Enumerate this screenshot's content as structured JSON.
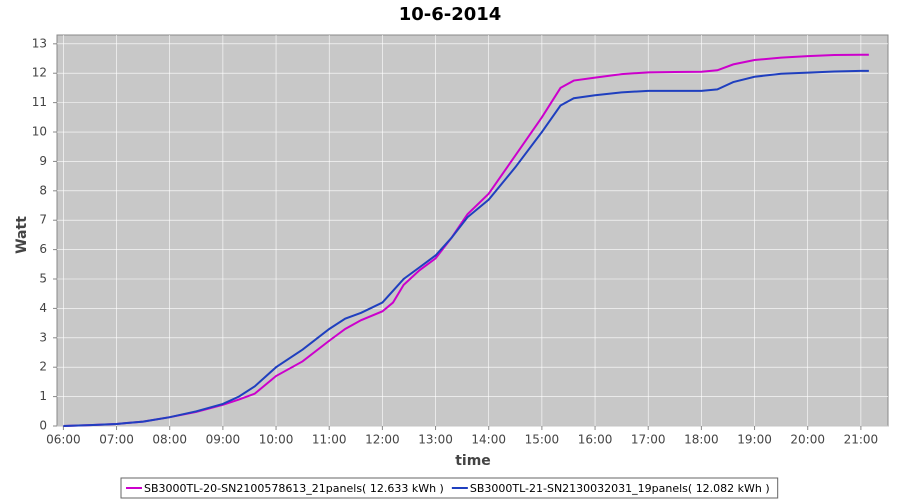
{
  "chart_data": {
    "type": "line",
    "title": "10-6-2014",
    "x_label": "time",
    "y_label": "Watt",
    "x": [
      6.0,
      6.5,
      7.0,
      7.5,
      8.0,
      8.5,
      9.0,
      9.3,
      9.6,
      10.0,
      10.5,
      11.0,
      11.3,
      11.6,
      12.0,
      12.2,
      12.4,
      12.7,
      13.0,
      13.3,
      13.6,
      14.0,
      14.5,
      15.0,
      15.35,
      15.6,
      16.0,
      16.5,
      17.0,
      17.5,
      18.0,
      18.3,
      18.6,
      19.0,
      19.5,
      20.0,
      20.5,
      21.0,
      21.15
    ],
    "series": [
      {
        "name": "SB3000TL-20-SN2100578613_21panels( 12.633 kWh )",
        "color": "#cc00cc",
        "values": [
          0,
          0.03,
          0.07,
          0.15,
          0.3,
          0.48,
          0.72,
          0.9,
          1.1,
          1.7,
          2.2,
          2.9,
          3.3,
          3.6,
          3.9,
          4.2,
          4.8,
          5.3,
          5.7,
          6.4,
          7.2,
          7.9,
          9.2,
          10.5,
          11.5,
          11.75,
          11.85,
          11.97,
          12.03,
          12.04,
          12.05,
          12.1,
          12.3,
          12.45,
          12.53,
          12.58,
          12.62,
          12.63,
          12.63
        ]
      },
      {
        "name": "SB3000TL-21-SN2130032031_19panels( 12.082 kWh )",
        "color": "#1f3fbf",
        "values": [
          0,
          0.03,
          0.07,
          0.15,
          0.3,
          0.5,
          0.75,
          1.0,
          1.35,
          2.0,
          2.6,
          3.3,
          3.65,
          3.85,
          4.2,
          4.6,
          5.0,
          5.4,
          5.8,
          6.4,
          7.1,
          7.7,
          8.8,
          10.0,
          10.9,
          11.15,
          11.25,
          11.35,
          11.4,
          11.4,
          11.4,
          11.45,
          11.7,
          11.88,
          11.98,
          12.02,
          12.06,
          12.08,
          12.08
        ]
      }
    ],
    "xlim": [
      5.88,
      21.51
    ],
    "ylim": [
      0,
      13.3
    ],
    "xticks": [
      {
        "value": 6,
        "label": "06:00"
      },
      {
        "value": 7,
        "label": "07:00"
      },
      {
        "value": 8,
        "label": "08:00"
      },
      {
        "value": 9,
        "label": "09:00"
      },
      {
        "value": 10,
        "label": "10:00"
      },
      {
        "value": 11,
        "label": "11:00"
      },
      {
        "value": 12,
        "label": "12:00"
      },
      {
        "value": 13,
        "label": "13:00"
      },
      {
        "value": 14,
        "label": "14:00"
      },
      {
        "value": 15,
        "label": "15:00"
      },
      {
        "value": 16,
        "label": "16:00"
      },
      {
        "value": 17,
        "label": "17:00"
      },
      {
        "value": 18,
        "label": "18:00"
      },
      {
        "value": 19,
        "label": "19:00"
      },
      {
        "value": 20,
        "label": "20:00"
      },
      {
        "value": 21,
        "label": "21:00"
      }
    ],
    "yticks": [
      0,
      1,
      2,
      3,
      4,
      5,
      6,
      7,
      8,
      9,
      10,
      11,
      12,
      13
    ],
    "grid": true,
    "legend": "bottom"
  }
}
